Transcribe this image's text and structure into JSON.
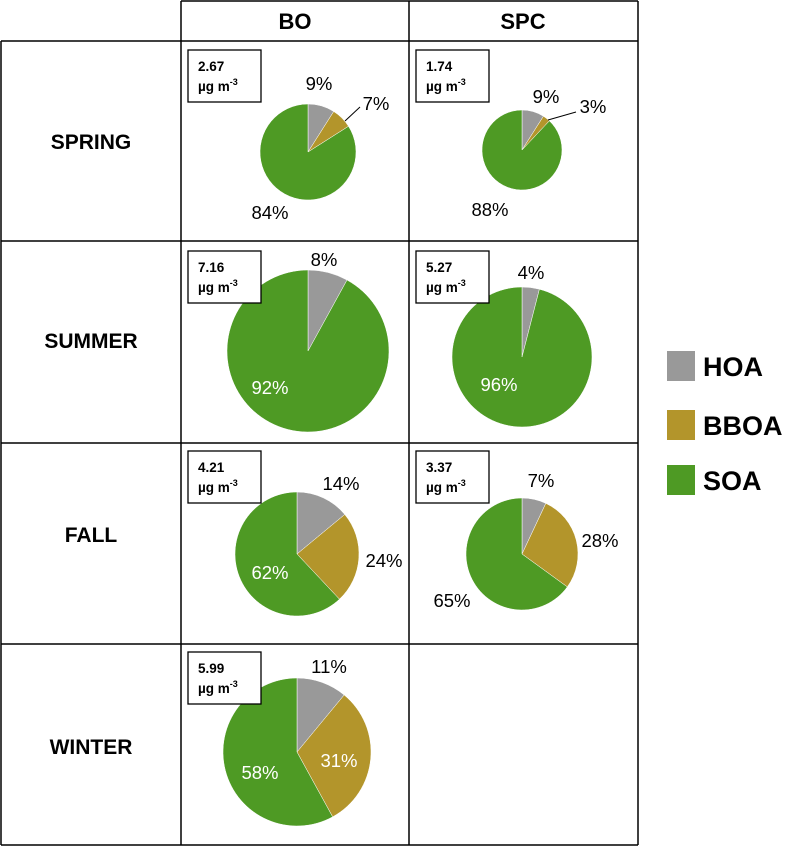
{
  "columns": [
    "BO",
    "SPC"
  ],
  "rows": [
    "SPRING",
    "SUMMER",
    "FALL",
    "WINTER"
  ],
  "legend": [
    {
      "name": "HOA",
      "color": "#999999"
    },
    {
      "name": "BBOA",
      "color": "#B3952B"
    },
    {
      "name": "SOA",
      "color": "#4E9A24"
    }
  ],
  "concentration_unit": "µg m",
  "concentration_unit_exponent": "-3",
  "chart_data": {
    "type": "pie",
    "unit": "µg m-3",
    "components": [
      "HOA",
      "BBOA",
      "SOA"
    ],
    "pies": [
      {
        "row": "SPRING",
        "column": "BO",
        "total": "2.67",
        "values": [
          9,
          7,
          84
        ],
        "labels": [
          "9%",
          "7%",
          "84%"
        ]
      },
      {
        "row": "SPRING",
        "column": "SPC",
        "total": "1.74",
        "values": [
          9,
          3,
          88
        ],
        "labels": [
          "9%",
          "3%",
          "88%"
        ]
      },
      {
        "row": "SUMMER",
        "column": "BO",
        "total": "7.16",
        "values": [
          8,
          0,
          92
        ],
        "labels": [
          "8%",
          "",
          "92%"
        ]
      },
      {
        "row": "SUMMER",
        "column": "SPC",
        "total": "5.27",
        "values": [
          4,
          0,
          96
        ],
        "labels": [
          "4%",
          "",
          "96%"
        ]
      },
      {
        "row": "FALL",
        "column": "BO",
        "total": "4.21",
        "values": [
          14,
          24,
          62
        ],
        "labels": [
          "14%",
          "24%",
          "62%"
        ]
      },
      {
        "row": "FALL",
        "column": "SPC",
        "total": "3.37",
        "values": [
          7,
          28,
          65
        ],
        "labels": [
          "7%",
          "28%",
          "65%"
        ]
      },
      {
        "row": "WINTER",
        "column": "BO",
        "total": "5.99",
        "values": [
          11,
          31,
          58
        ],
        "labels": [
          "11%",
          "31%",
          "58%"
        ]
      }
    ]
  }
}
